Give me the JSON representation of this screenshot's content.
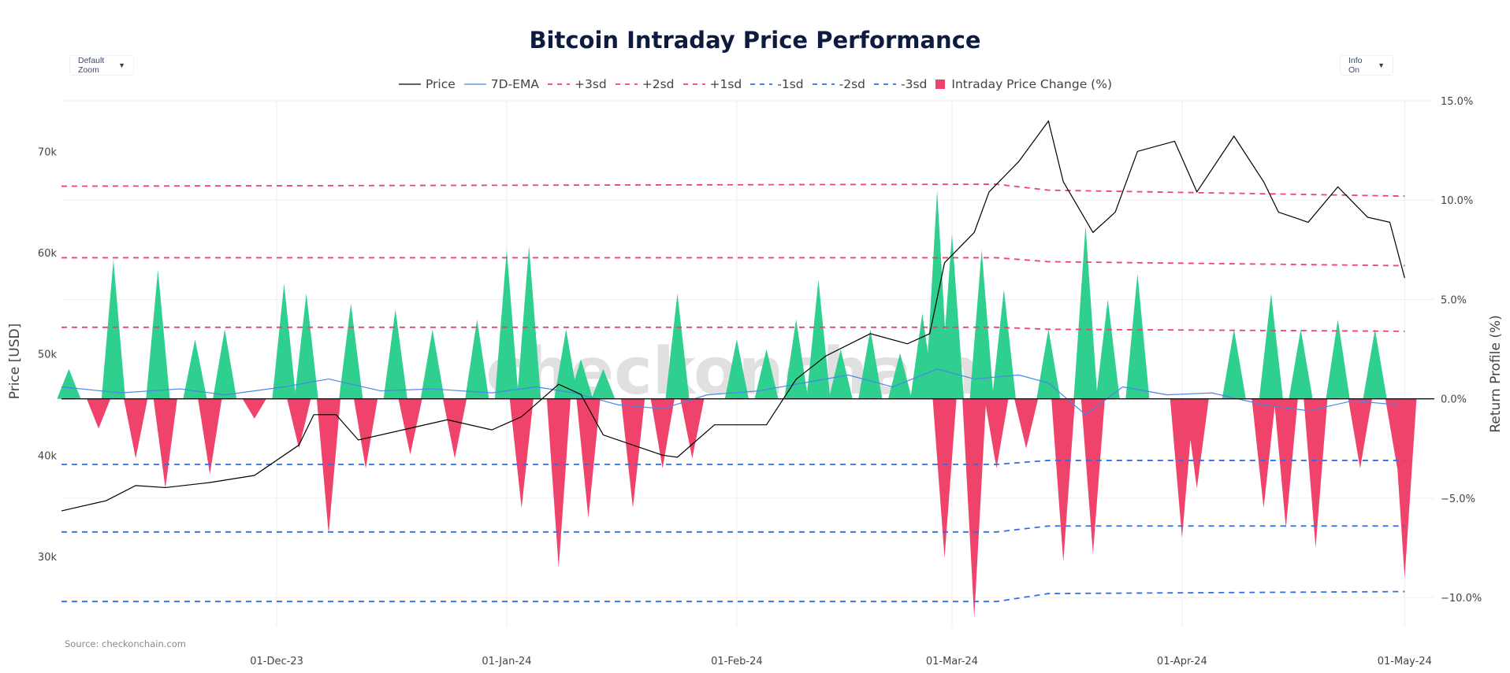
{
  "title": "Bitcoin Intraday Price Performance",
  "source": "Source: checkonchain.com",
  "watermark": "checkonchain",
  "controls": {
    "zoom_label": "Default Zoom",
    "info_label": "Info On",
    "arrow": "▼"
  },
  "colors": {
    "price": "#000000",
    "ema": "#4a86e8",
    "plus_sd": "#f0436b",
    "minus_sd": "#2f6fe8",
    "bar_pos": "#2ecf8f",
    "bar_neg": "#f0436b"
  },
  "legend": [
    {
      "label": "Price",
      "style": "solid",
      "color": "#000000"
    },
    {
      "label": "7D-EMA",
      "style": "solid",
      "color": "#4a86e8"
    },
    {
      "label": "+3sd",
      "style": "dash",
      "color": "#f0436b"
    },
    {
      "label": "+2sd",
      "style": "dash",
      "color": "#f0436b"
    },
    {
      "label": "+1sd",
      "style": "dash",
      "color": "#f0436b"
    },
    {
      "label": "-1sd",
      "style": "dash",
      "color": "#2f6fe8"
    },
    {
      "label": "-2sd",
      "style": "dash",
      "color": "#2f6fe8"
    },
    {
      "label": "-3sd",
      "style": "dash",
      "color": "#2f6fe8"
    },
    {
      "label": "Intraday Price Change (%)",
      "style": "box",
      "color": "#f0436b"
    }
  ],
  "chart_data": {
    "type": "line",
    "title": "Bitcoin Intraday Price Performance",
    "xlabel": "",
    "ylabel": "Price [USD]",
    "y2label": "Return Profile (%)",
    "xlim": [
      "2023-11-02",
      "2024-05-05"
    ],
    "x_ticks": [
      "01-Dec-23",
      "01-Jan-24",
      "01-Feb-24",
      "01-Mar-24",
      "01-Apr-24",
      "01-May-24"
    ],
    "y_ticks": [
      "30k",
      "40k",
      "50k",
      "60k",
      "70k"
    ],
    "y2_ticks": [
      "15.0%",
      "10.0%",
      "5.0%",
      "0.0%",
      "−5.0%",
      "−10.0%"
    ],
    "ylim": [
      23000,
      75000
    ],
    "y2lim": [
      -11.5,
      15.0
    ],
    "grid": true,
    "legend_position": "top",
    "price": {
      "name": "Price",
      "x": [
        "2023-11-02",
        "2023-11-08",
        "2023-11-12",
        "2023-11-16",
        "2023-11-22",
        "2023-11-28",
        "2023-12-04",
        "2023-12-06",
        "2023-12-09",
        "2023-12-12",
        "2023-12-18",
        "2023-12-24",
        "2023-12-30",
        "2024-01-03",
        "2024-01-08",
        "2024-01-11",
        "2024-01-14",
        "2024-01-18",
        "2024-01-22",
        "2024-01-24",
        "2024-01-29",
        "2024-02-05",
        "2024-02-09",
        "2024-02-13",
        "2024-02-19",
        "2024-02-24",
        "2024-02-27",
        "2024-02-29",
        "2024-03-04",
        "2024-03-06",
        "2024-03-10",
        "2024-03-14",
        "2024-03-16",
        "2024-03-20",
        "2024-03-23",
        "2024-03-26",
        "2024-03-31",
        "2024-04-03",
        "2024-04-08",
        "2024-04-12",
        "2024-04-14",
        "2024-04-18",
        "2024-04-22",
        "2024-04-26",
        "2024-04-29",
        "2024-05-01"
      ],
      "y": [
        34500,
        35500,
        37000,
        36800,
        37300,
        38000,
        41000,
        44000,
        44000,
        41500,
        42500,
        43500,
        42500,
        43800,
        47000,
        46000,
        42000,
        41000,
        40000,
        39800,
        43000,
        43000,
        47500,
        49800,
        52000,
        51000,
        52000,
        59000,
        62000,
        66000,
        69000,
        73000,
        67000,
        62000,
        64000,
        70000,
        71000,
        66000,
        71500,
        67000,
        64000,
        63000,
        66500,
        63500,
        63000,
        57500
      ]
    },
    "ema": {
      "name": "7D-EMA",
      "x": [
        "2023-11-02",
        "2023-11-10",
        "2023-11-18",
        "2023-11-24",
        "2023-12-02",
        "2023-12-08",
        "2023-12-15",
        "2023-12-22",
        "2023-12-30",
        "2024-01-05",
        "2024-01-10",
        "2024-01-16",
        "2024-01-22",
        "2024-01-28",
        "2024-02-04",
        "2024-02-10",
        "2024-02-16",
        "2024-02-22",
        "2024-02-28",
        "2024-03-04",
        "2024-03-10",
        "2024-03-14",
        "2024-03-19",
        "2024-03-24",
        "2024-03-30",
        "2024-04-05",
        "2024-04-12",
        "2024-04-18",
        "2024-04-24",
        "2024-04-30"
      ],
      "y": [
        0.6,
        0.3,
        0.5,
        0.2,
        0.6,
        1.0,
        0.4,
        0.5,
        0.3,
        0.6,
        0.3,
        -0.3,
        -0.5,
        0.2,
        0.4,
        0.8,
        1.2,
        0.6,
        1.5,
        1.0,
        1.2,
        0.8,
        -0.8,
        0.6,
        0.2,
        0.3,
        -0.3,
        -0.6,
        -0.1,
        -0.3
      ]
    },
    "sd_bands": [
      {
        "name": "+3sd",
        "x": [
          "2023-11-02",
          "2024-03-07",
          "2024-03-14",
          "2024-05-01"
        ],
        "y": [
          10.7,
          10.8,
          10.5,
          10.2
        ]
      },
      {
        "name": "+2sd",
        "x": [
          "2023-11-02",
          "2024-03-07",
          "2024-03-14",
          "2024-05-01"
        ],
        "y": [
          7.1,
          7.1,
          6.9,
          6.7
        ]
      },
      {
        "name": "+1sd",
        "x": [
          "2023-11-02",
          "2024-03-07",
          "2024-03-14",
          "2024-05-01"
        ],
        "y": [
          3.6,
          3.6,
          3.5,
          3.4
        ]
      },
      {
        "name": "-1sd",
        "x": [
          "2023-11-02",
          "2024-03-07",
          "2024-03-14",
          "2024-05-01"
        ],
        "y": [
          -3.3,
          -3.3,
          -3.1,
          -3.1
        ]
      },
      {
        "name": "-2sd",
        "x": [
          "2023-11-02",
          "2024-03-07",
          "2024-03-14",
          "2024-05-01"
        ],
        "y": [
          -6.7,
          -6.7,
          -6.4,
          -6.4
        ]
      },
      {
        "name": "-3sd",
        "x": [
          "2023-11-02",
          "2024-03-07",
          "2024-03-14",
          "2024-05-01"
        ],
        "y": [
          -10.2,
          -10.2,
          -9.8,
          -9.7
        ]
      }
    ],
    "intraday_change": {
      "name": "Intraday Price Change (%)",
      "x": [
        "2023-11-03",
        "2023-11-07",
        "2023-11-09",
        "2023-11-12",
        "2023-11-15",
        "2023-11-16",
        "2023-11-20",
        "2023-11-22",
        "2023-11-24",
        "2023-11-28",
        "2023-12-02",
        "2023-12-04",
        "2023-12-05",
        "2023-12-08",
        "2023-12-11",
        "2023-12-13",
        "2023-12-17",
        "2023-12-19",
        "2023-12-22",
        "2023-12-25",
        "2023-12-28",
        "2024-01-01",
        "2024-01-03",
        "2024-01-04",
        "2024-01-08",
        "2024-01-09",
        "2024-01-11",
        "2024-01-12",
        "2024-01-14",
        "2024-01-18",
        "2024-01-22",
        "2024-01-24",
        "2024-01-26",
        "2024-02-01",
        "2024-02-05",
        "2024-02-09",
        "2024-02-12",
        "2024-02-15",
        "2024-02-19",
        "2024-02-23",
        "2024-02-26",
        "2024-02-28",
        "2024-02-29",
        "2024-03-01",
        "2024-03-04",
        "2024-03-05",
        "2024-03-07",
        "2024-03-08",
        "2024-03-11",
        "2024-03-14",
        "2024-03-16",
        "2024-03-19",
        "2024-03-20",
        "2024-03-22",
        "2024-03-26",
        "2024-04-01",
        "2024-04-03",
        "2024-04-08",
        "2024-04-12",
        "2024-04-13",
        "2024-04-15",
        "2024-04-17",
        "2024-04-19",
        "2024-04-22",
        "2024-04-25",
        "2024-04-27",
        "2024-04-30",
        "2024-05-01"
      ],
      "y": [
        1.5,
        -1.5,
        7.0,
        -3.0,
        6.5,
        -4.5,
        3.0,
        -3.8,
        3.5,
        -1.0,
        5.8,
        -2.5,
        5.3,
        -6.8,
        4.8,
        -3.5,
        4.5,
        -2.8,
        3.5,
        -3.0,
        4.0,
        7.5,
        -5.5,
        7.7,
        -8.5,
        3.5,
        2.0,
        -6.0,
        1.5,
        -5.5,
        -3.5,
        5.3,
        -3.0,
        3.0,
        2.5,
        4.0,
        6.0,
        2.5,
        3.5,
        2.3,
        4.3,
        10.5,
        -8.0,
        8.3,
        -11.0,
        7.5,
        -3.5,
        5.5,
        -2.5,
        3.5,
        -8.2,
        8.7,
        -7.8,
        5.0,
        6.3,
        -7.0,
        -4.5,
        3.5,
        -5.5,
        5.3,
        -6.5,
        3.5,
        -7.5,
        4.0,
        -3.5,
        3.5,
        -3.5,
        -9.0
      ]
    }
  }
}
